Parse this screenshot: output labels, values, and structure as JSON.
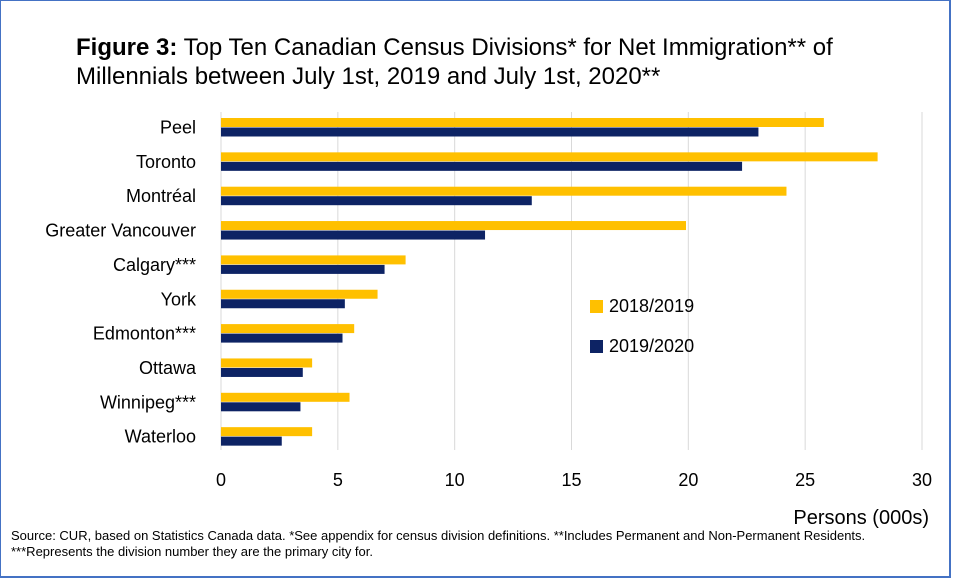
{
  "title": {
    "prefix": "Figure 3:",
    "text": "Top Ten Canadian Census Divisions* for Net Immigration** of Millennials between July 1st, 2019 and July 1st, 2020**"
  },
  "source_note": "Source: CUR, based on Statistics Canada data. *See appendix for census division definitions. **Includes Permanent and Non-Permanent Residents. ***Represents the division number they are the primary city for.",
  "chart_data": {
    "type": "bar",
    "orientation": "horizontal",
    "categories": [
      "Peel",
      "Toronto",
      "Montréal",
      "Greater Vancouver",
      "Calgary***",
      "York",
      "Edmonton***",
      "Ottawa",
      "Winnipeg***",
      "Waterloo"
    ],
    "series": [
      {
        "name": "2018/2019",
        "color": "#ffc000",
        "values": [
          25.8,
          28.1,
          24.2,
          19.9,
          7.9,
          6.7,
          5.7,
          3.9,
          5.5,
          3.9
        ]
      },
      {
        "name": "2019/2020",
        "color": "#0d2364",
        "values": [
          23.0,
          22.3,
          13.3,
          11.3,
          7.0,
          5.3,
          5.2,
          3.5,
          3.4,
          2.6
        ]
      }
    ],
    "xlabel": "Persons (000s)",
    "ylabel": "",
    "xlim": [
      0,
      30
    ],
    "xticks": [
      0,
      5,
      10,
      15,
      20,
      25,
      30
    ],
    "grid": true,
    "legend": "right-center"
  }
}
